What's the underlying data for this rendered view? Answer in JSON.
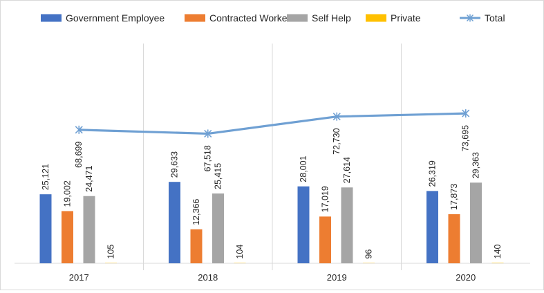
{
  "chart_data": {
    "type": "bar",
    "title": "",
    "xlabel": "",
    "ylabel": "",
    "categories": [
      "2017",
      "2018",
      "2019",
      "2020"
    ],
    "series": [
      {
        "name": "Government Employee",
        "type": "bar",
        "color": "#4472C4",
        "values": [
          25121,
          29633,
          28001,
          26319
        ],
        "labels": [
          "25,121",
          "29,633",
          "28,001",
          "26,319"
        ]
      },
      {
        "name": "Contracted Worker",
        "type": "bar",
        "color": "#ED7D31",
        "values": [
          19002,
          12366,
          17019,
          17873
        ],
        "labels": [
          "19,002",
          "12,366",
          "17,019",
          "17,873"
        ]
      },
      {
        "name": "Self Help",
        "type": "bar",
        "color": "#A5A5A5",
        "values": [
          24471,
          25415,
          27614,
          29363
        ],
        "labels": [
          "24,471",
          "25,415",
          "27,614",
          "29,363"
        ]
      },
      {
        "name": "Private",
        "type": "bar",
        "color": "#FFC000",
        "values": [
          105,
          104,
          96,
          140
        ],
        "labels": [
          "105",
          "104",
          "96",
          "140"
        ]
      },
      {
        "name": "Total",
        "type": "line",
        "color": "#6FA0D3",
        "marker": "asterisk",
        "values": [
          68699,
          67518,
          72730,
          73695
        ],
        "labels": [
          "68,699",
          "67,518",
          "72,730",
          "73,695"
        ]
      }
    ],
    "bar_axis_range": [
      0,
      80000
    ],
    "line_axis_range": [
      28000,
      95000
    ],
    "grid": false,
    "legend_position": "top"
  }
}
